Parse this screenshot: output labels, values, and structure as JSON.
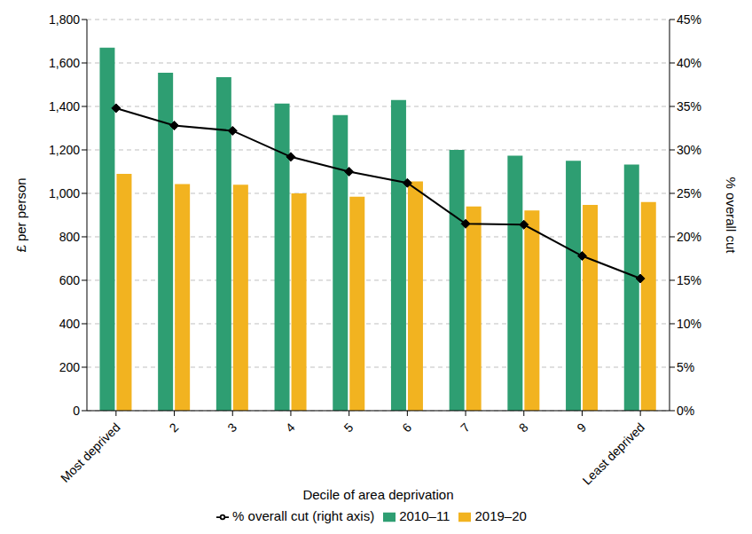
{
  "chart_data": {
    "type": "bar",
    "x_label": "Decile of area deprivation",
    "y_label": "£ per person",
    "y2_label": "% overall cut",
    "categories": [
      "Most deprived",
      "2",
      "3",
      "4",
      "5",
      "6",
      "7",
      "8",
      "9",
      "Least deprived"
    ],
    "series": [
      {
        "name": "2010–11",
        "type": "bar",
        "color": "#2e9e72",
        "values": [
          1670,
          1555,
          1535,
          1413,
          1360,
          1430,
          1200,
          1173,
          1150,
          1133
        ]
      },
      {
        "name": "2019–20",
        "type": "bar",
        "color": "#f2b320",
        "values": [
          1090,
          1043,
          1040,
          1000,
          985,
          1055,
          940,
          921,
          947,
          960
        ]
      },
      {
        "name": "% overall cut (right axis)",
        "type": "line",
        "axis": "y2",
        "color": "#000000",
        "marker": "diamond",
        "line_style": "solid",
        "values": [
          34.8,
          32.8,
          32.2,
          29.2,
          27.5,
          26.2,
          21.5,
          21.4,
          17.8,
          15.2
        ]
      }
    ],
    "ylim": [
      0,
      1800
    ],
    "yticks": [
      0,
      200,
      400,
      600,
      800,
      {
        "value": 1000,
        "label": "1,000"
      },
      {
        "value": 1200,
        "label": "1,200"
      },
      {
        "value": 1400,
        "label": "1,400"
      },
      {
        "value": 1600,
        "label": "1,600"
      },
      {
        "value": 1800,
        "label": "1,800"
      }
    ],
    "y2lim": [
      0,
      45
    ],
    "y2ticks": [
      {
        "value": 0,
        "label": "0%"
      },
      {
        "value": 5,
        "label": "5%"
      },
      {
        "value": 10,
        "label": "10%"
      },
      {
        "value": 15,
        "label": "15%"
      },
      {
        "value": 20,
        "label": "20%"
      },
      {
        "value": 25,
        "label": "25%"
      },
      {
        "value": 30,
        "label": "30%"
      },
      {
        "value": 35,
        "label": "35%"
      },
      {
        "value": 40,
        "label": "40%"
      },
      {
        "value": 45,
        "label": "45%"
      }
    ],
    "grid": true,
    "legend": "bottom"
  }
}
